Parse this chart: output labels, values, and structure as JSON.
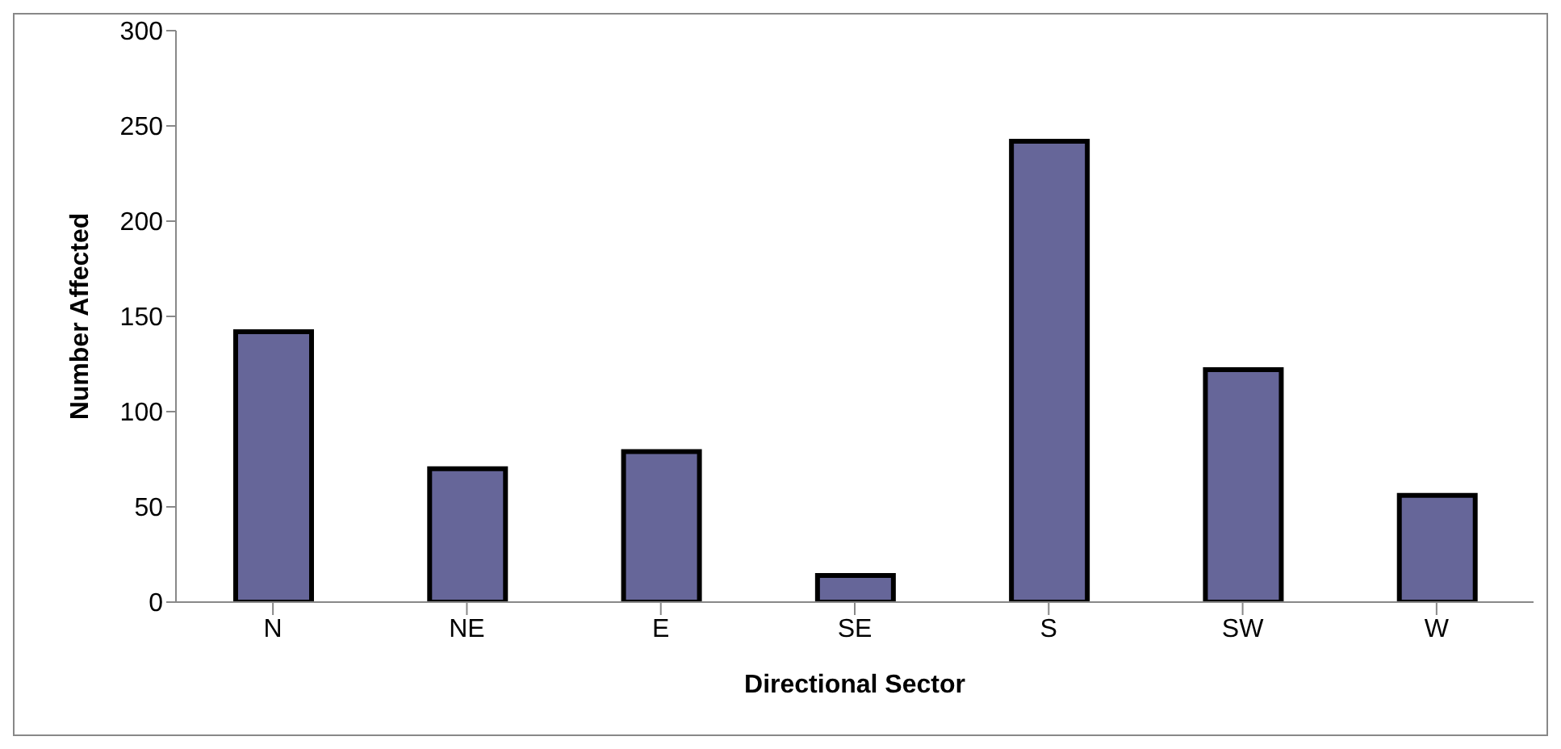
{
  "chart_data": {
    "type": "bar",
    "xlabel": "Directional Sector",
    "ylabel": "Number Affected",
    "categories": [
      "N",
      "NE",
      "E",
      "SE",
      "S",
      "SW",
      "W"
    ],
    "values": [
      142,
      70,
      79,
      14,
      242,
      122,
      56
    ],
    "color": "#666699",
    "ylim": [
      0,
      300
    ],
    "yticks": [
      0,
      50,
      100,
      150,
      200,
      250,
      300
    ],
    "grid": false,
    "legend": false
  }
}
